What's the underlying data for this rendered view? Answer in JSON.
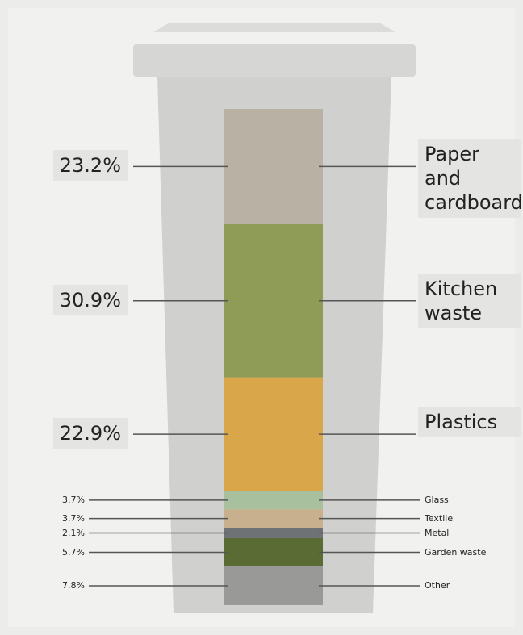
{
  "chart_data": {
    "type": "stacked_column",
    "categories": [
      "Paper and cardboard",
      "Kitchen waste",
      "Plastics",
      "Glass",
      "Textile",
      "Metal",
      "Garden waste",
      "Other"
    ],
    "values": [
      23.2,
      30.9,
      22.9,
      3.7,
      3.7,
      2.1,
      5.7,
      7.8
    ],
    "value_labels": [
      "23.2%",
      "30.9%",
      "22.9%",
      "3.7%",
      "3.7%",
      "2.1%",
      "5.7%",
      "7.8%"
    ],
    "colors": [
      "#b9b2a4",
      "#8f9c58",
      "#d9a64a",
      "#a9c09f",
      "#c8b08f",
      "#6f7274",
      "#5b6b34",
      "#999a98"
    ]
  }
}
